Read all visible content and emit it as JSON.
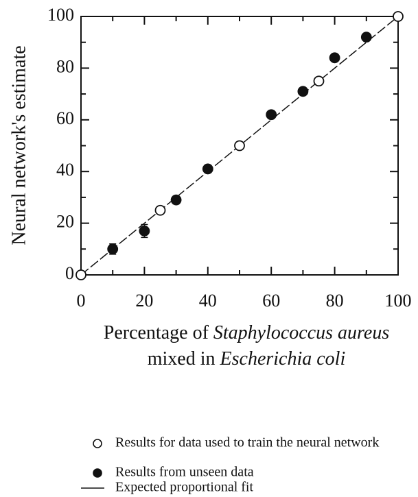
{
  "chart_data": {
    "type": "scatter",
    "ylabel": "Neural network's estimate",
    "xlabel_lines": [
      [
        {
          "text": "Percentage of",
          "italic": false
        },
        {
          "text": "Staphylococcus aureus",
          "italic": true
        }
      ],
      [
        {
          "text": "mixed in",
          "italic": false
        },
        {
          "text": "Escherichia coli",
          "italic": true
        }
      ]
    ],
    "xlim": [
      0,
      100
    ],
    "ylim": [
      0,
      100
    ],
    "xticks": [
      0,
      20,
      40,
      60,
      80,
      100
    ],
    "yticks": [
      0,
      20,
      40,
      60,
      80,
      100
    ],
    "xminor_ticks": [
      10,
      30,
      50,
      70,
      90
    ],
    "yminor_ticks": [
      10,
      30,
      50,
      70,
      90
    ],
    "series": [
      {
        "name": "Results for data used to train the neural network",
        "marker": "open",
        "color": "#111111",
        "x": [
          0,
          25,
          50,
          75,
          100
        ],
        "values": [
          0,
          25,
          50,
          75,
          100
        ]
      },
      {
        "name": "Results from unseen data",
        "marker": "filled",
        "color": "#111111",
        "x": [
          10,
          20,
          30,
          40,
          60,
          70,
          80,
          90
        ],
        "values": [
          10,
          17,
          29,
          41,
          62,
          71,
          84,
          92
        ],
        "errors": [
          2,
          2.5,
          1.5,
          1,
          1,
          1,
          1,
          1
        ]
      },
      {
        "name": "Expected proportional fit",
        "marker": "line",
        "color": "#111111",
        "x": [
          0,
          100
        ],
        "values": [
          0,
          100
        ]
      }
    ]
  }
}
